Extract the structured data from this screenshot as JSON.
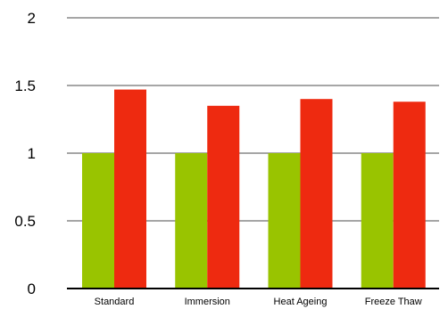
{
  "chart_data": {
    "type": "bar",
    "categories": [
      "Standard",
      "Immersion",
      "Heat Ageing",
      "Freeze Thaw"
    ],
    "series": [
      {
        "values": [
          1.0,
          1.0,
          1.0,
          1.0
        ],
        "color": "#99c400"
      },
      {
        "values": [
          1.47,
          1.35,
          1.4,
          1.38
        ],
        "color": "#ee2a10"
      }
    ],
    "yticks": [
      "0",
      "0.5",
      "1",
      "1.5",
      "2"
    ],
    "ylim": [
      0,
      2
    ],
    "grid": true,
    "legend": "none",
    "gridline_color": "#a6a6a6",
    "axis_color": "#000000"
  }
}
